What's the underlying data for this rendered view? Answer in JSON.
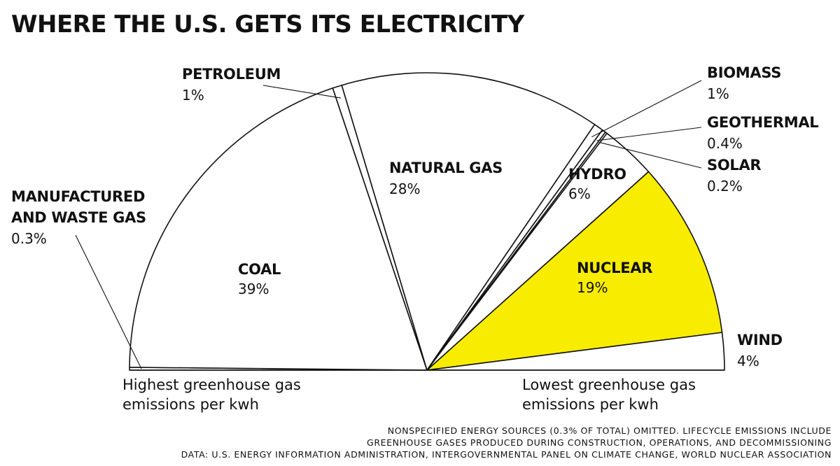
{
  "title": "WHERE THE U.S. GETS ITS ELECTRICITY",
  "chart_data": {
    "type": "pie",
    "subtype": "semicircle",
    "title": "WHERE THE U.S. GETS ITS ELECTRICITY",
    "order": "highest to lowest greenhouse gas emissions per kwh (left to right)",
    "highlight_color": "#f8ec00",
    "slices": [
      {
        "name": "MANUFACTURED AND WASTE GAS",
        "value_label": "0.3%",
        "value": 0.3
      },
      {
        "name": "COAL",
        "value_label": "39%",
        "value": 39
      },
      {
        "name": "PETROLEUM",
        "value_label": "1%",
        "value": 1
      },
      {
        "name": "NATURAL GAS",
        "value_label": "28%",
        "value": 28
      },
      {
        "name": "BIOMASS",
        "value_label": "1%",
        "value": 1
      },
      {
        "name": "GEOTHERMAL",
        "value_label": "0.4%",
        "value": 0.4
      },
      {
        "name": "SOLAR",
        "value_label": "0.2%",
        "value": 0.2
      },
      {
        "name": "HYDRO",
        "value_label": "6%",
        "value": 6
      },
      {
        "name": "NUCLEAR",
        "value_label": "19%",
        "value": 19,
        "highlight": true
      },
      {
        "name": "WIND",
        "value_label": "4%",
        "value": 4
      }
    ],
    "left_note": [
      "Highest greenhouse gas",
      "emissions per kwh"
    ],
    "right_note": [
      "Lowest greenhouse gas",
      "emissions per kwh"
    ]
  },
  "footnotes": [
    "NONSPECIFIED ENERGY SOURCES (0.3% OF TOTAL) OMITTED. LIFECYCLE EMISSIONS INCLUDE",
    "GREENHOUSE GASES PRODUCED DURING CONSTRUCTION, OPERATIONS, AND DECOMMISSIONING",
    "DATA: U.S. ENERGY INFORMATION ADMINISTRATION, INTERGOVERNMENTAL PANEL ON CLIMATE CHANGE, WORLD NUCLEAR ASSOCIATION"
  ]
}
